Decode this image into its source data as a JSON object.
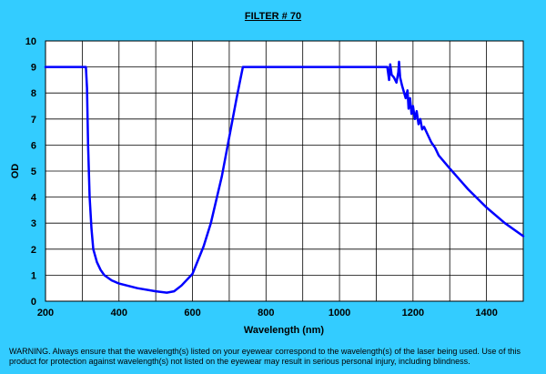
{
  "chart_data": {
    "type": "line",
    "title": "FILTER # 70",
    "xlabel": "Wavelength (nm)",
    "ylabel": "OD",
    "xlim": [
      200,
      1500
    ],
    "ylim": [
      0,
      10
    ],
    "xticks": [
      200,
      400,
      600,
      800,
      1000,
      1200,
      1400
    ],
    "yticks": [
      0,
      1,
      2,
      3,
      4,
      5,
      6,
      7,
      8,
      9,
      10
    ],
    "grid": true,
    "series": [
      {
        "color": "#0000ff",
        "x": [
          200,
          310,
          313,
          316,
          320,
          325,
          330,
          340,
          350,
          360,
          380,
          400,
          450,
          500,
          530,
          550,
          570,
          600,
          630,
          650,
          680,
          700,
          720,
          730,
          737,
          745,
          800,
          900,
          1000,
          1100,
          1130,
          1135,
          1138,
          1142,
          1148,
          1155,
          1160,
          1162,
          1165,
          1170,
          1180,
          1185,
          1188,
          1192,
          1196,
          1200,
          1205,
          1210,
          1215,
          1220,
          1225,
          1230,
          1240,
          1250,
          1260,
          1270,
          1300,
          1350,
          1400,
          1450,
          1500
        ],
        "y": [
          9.0,
          9.0,
          8.2,
          6.0,
          4.0,
          2.8,
          2.0,
          1.5,
          1.2,
          1.0,
          0.8,
          0.68,
          0.5,
          0.38,
          0.33,
          0.38,
          0.6,
          1.05,
          2.1,
          3.0,
          4.8,
          6.3,
          7.8,
          8.5,
          9.0,
          9.0,
          9.0,
          9.0,
          9.0,
          9.0,
          9.0,
          8.5,
          9.1,
          8.7,
          8.6,
          8.4,
          8.8,
          9.2,
          8.6,
          8.3,
          7.8,
          8.1,
          7.4,
          7.8,
          7.2,
          7.5,
          7.0,
          7.3,
          6.8,
          7.0,
          6.6,
          6.7,
          6.4,
          6.1,
          5.9,
          5.6,
          5.1,
          4.3,
          3.6,
          3.0,
          2.5
        ]
      }
    ]
  },
  "warning_text": "WARNING.  Always ensure that the wavelength(s)  listed on your eyewear  correspond to the wavelength(s) of the laser being used.  Use of this product for protection against wavelength(s) not listed on the eyewear  may result in serious personal injury, including blindness."
}
